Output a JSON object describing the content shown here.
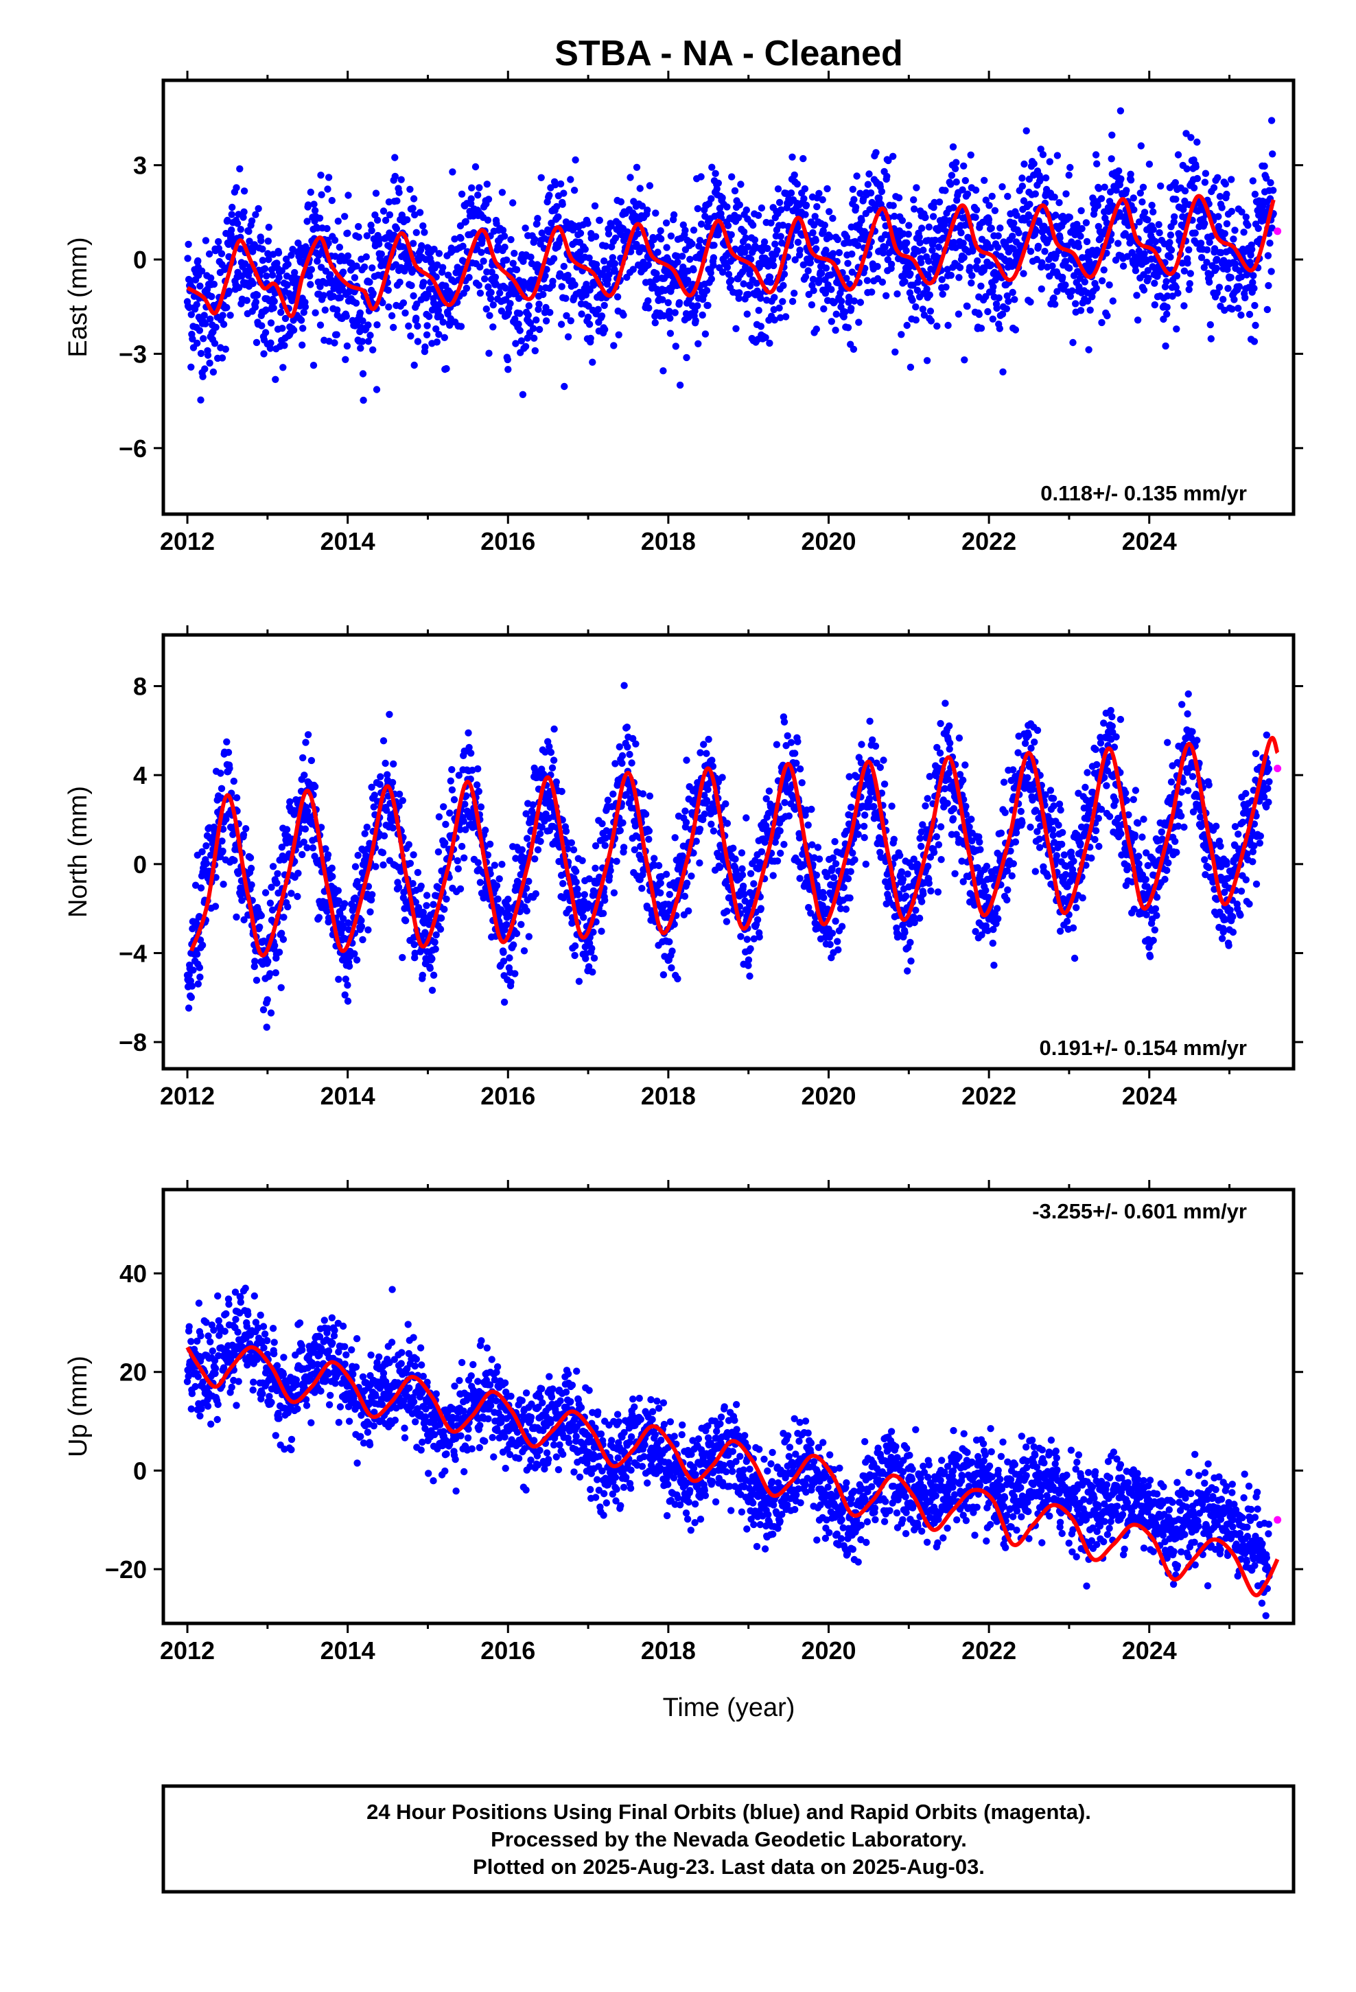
{
  "title": "STBA  - NA - Cleaned",
  "colors": {
    "final_orbits": "#0000ff",
    "rapid_orbits": "#ff00ff",
    "model_fit": "#ff0000",
    "frame": "#000000"
  },
  "chart_data": [
    {
      "type": "scatter",
      "ylabel": "East (mm)",
      "xlim": [
        2011.7,
        2025.8
      ],
      "ylim": [
        -8.1,
        5.7
      ],
      "xticks": [
        2012,
        2014,
        2016,
        2018,
        2020,
        2022,
        2024
      ],
      "yticks": [
        -6,
        -3,
        0,
        3
      ],
      "ytick_labels": [
        "−6",
        "−3",
        "0",
        "3"
      ],
      "rate_text": "0.118+/- 0.135 mm/yr",
      "rate_position": "bottom-right",
      "series": [
        {
          "kind": "points",
          "x": [
            2012.0,
            2012.2,
            2012.4,
            2012.6,
            2012.8,
            2013.0,
            2013.2,
            2013.4,
            2013.6,
            2013.8,
            2014.0,
            2014.2,
            2014.4,
            2014.6,
            2014.8,
            2015.0,
            2015.2,
            2015.4,
            2015.6,
            2015.8,
            2016.0,
            2016.2,
            2016.4,
            2016.6,
            2016.8,
            2017.0,
            2017.2,
            2017.4,
            2017.6,
            2017.8,
            2018.0,
            2018.2,
            2018.4,
            2018.6,
            2018.8,
            2019.0,
            2019.2,
            2019.4,
            2019.6,
            2019.8,
            2020.0,
            2020.2,
            2020.4,
            2020.6,
            2020.8,
            2021.0,
            2021.2,
            2021.4,
            2021.6,
            2021.8,
            2022.0,
            2022.2,
            2022.4,
            2022.6,
            2022.8,
            2023.0,
            2023.2,
            2023.4,
            2023.6,
            2023.8,
            2024.0,
            2024.2,
            2024.4,
            2024.6,
            2024.8,
            2025.0,
            2025.2,
            2025.4,
            2025.55
          ],
          "y": [
            -1.0,
            -1.7,
            -1.2,
            0.4,
            -0.6,
            -1.0,
            -1.6,
            -0.5,
            0.6,
            -0.6,
            -1.0,
            -1.3,
            -0.2,
            0.9,
            -0.5,
            -0.8,
            -1.3,
            -0.4,
            0.9,
            -0.3,
            -0.7,
            -1.2,
            -0.1,
            1.0,
            -0.2,
            -0.7,
            -1.1,
            0.0,
            1.1,
            -0.2,
            -0.5,
            -0.9,
            0.2,
            1.2,
            0.0,
            -0.4,
            -0.9,
            0.3,
            1.3,
            0.2,
            -0.3,
            -0.7,
            0.6,
            1.6,
            0.4,
            0.1,
            -0.5,
            0.6,
            1.5,
            0.3,
            0.0,
            -0.4,
            0.8,
            1.6,
            0.4,
            0.1,
            -0.4,
            0.7,
            1.8,
            0.5,
            0.2,
            -0.3,
            0.8,
            1.9,
            0.6,
            0.3,
            -0.3,
            0.6,
            1.4
          ],
          "spread": 1.1
        },
        {
          "kind": "model",
          "x": [
            2012.0,
            2012.2,
            2012.35,
            2012.5,
            2012.65,
            2012.8,
            2012.95,
            2013.1,
            2013.3,
            2013.45,
            2013.65,
            2013.8,
            2014.0,
            2014.2,
            2014.35,
            2014.65,
            2014.85,
            2015.05,
            2015.3,
            2015.65,
            2015.85,
            2016.05,
            2016.3,
            2016.6,
            2016.8,
            2017.05,
            2017.3,
            2017.6,
            2017.8,
            2018.05,
            2018.3,
            2018.6,
            2018.8,
            2019.05,
            2019.3,
            2019.6,
            2019.8,
            2020.05,
            2020.3,
            2020.65,
            2020.85,
            2021.05,
            2021.3,
            2021.65,
            2021.85,
            2022.05,
            2022.3,
            2022.65,
            2022.85,
            2023.05,
            2023.3,
            2023.65,
            2023.85,
            2024.05,
            2024.3,
            2024.6,
            2024.85,
            2025.05,
            2025.3,
            2025.55
          ],
          "y": [
            -0.9,
            -1.2,
            -1.7,
            -0.6,
            0.6,
            -0.1,
            -0.9,
            -0.8,
            -1.8,
            -0.4,
            0.7,
            -0.2,
            -0.8,
            -1.0,
            -1.5,
            0.8,
            -0.2,
            -0.6,
            -1.4,
            0.9,
            -0.1,
            -0.6,
            -1.2,
            1.0,
            0.0,
            -0.4,
            -1.1,
            1.1,
            0.1,
            -0.3,
            -1.1,
            1.2,
            0.2,
            -0.2,
            -1.0,
            1.3,
            0.2,
            -0.1,
            -0.9,
            1.6,
            0.3,
            0.0,
            -0.7,
            1.7,
            0.4,
            0.1,
            -0.6,
            1.7,
            0.5,
            0.2,
            -0.5,
            1.9,
            0.6,
            0.3,
            -0.4,
            2.0,
            0.7,
            0.4,
            -0.3,
            1.9
          ]
        },
        {
          "kind": "rapid",
          "x": [
            2025.6
          ],
          "y": [
            0.9
          ]
        }
      ]
    },
    {
      "type": "scatter",
      "ylabel": "North (mm)",
      "xlim": [
        2011.7,
        2025.8
      ],
      "ylim": [
        -9.2,
        10.3
      ],
      "xticks": [
        2012,
        2014,
        2016,
        2018,
        2020,
        2022,
        2024
      ],
      "yticks": [
        -8,
        -4,
        0,
        4,
        8
      ],
      "ytick_labels": [
        "−8",
        "−4",
        "0",
        "4",
        "8"
      ],
      "rate_text": "0.191+/- 0.154 mm/yr",
      "rate_position": "bottom-right",
      "series": [
        {
          "kind": "points",
          "x": [
            2012.0,
            2012.25,
            2012.5,
            2012.75,
            2013.0,
            2013.25,
            2013.5,
            2013.75,
            2014.0,
            2014.25,
            2014.5,
            2014.75,
            2015.0,
            2015.25,
            2015.5,
            2015.75,
            2016.0,
            2016.25,
            2016.5,
            2016.75,
            2017.0,
            2017.25,
            2017.5,
            2017.75,
            2018.0,
            2018.25,
            2018.5,
            2018.75,
            2019.0,
            2019.25,
            2019.5,
            2019.75,
            2020.0,
            2020.25,
            2020.5,
            2020.75,
            2021.0,
            2021.25,
            2021.5,
            2021.75,
            2022.0,
            2022.25,
            2022.5,
            2022.75,
            2023.0,
            2023.25,
            2023.5,
            2023.75,
            2024.0,
            2024.25,
            2024.5,
            2024.75,
            2025.0,
            2025.25,
            2025.5
          ],
          "y": [
            -5.5,
            -1.0,
            3.0,
            -1.5,
            -4.3,
            0.2,
            3.2,
            -1.2,
            -4.0,
            0.3,
            3.4,
            -1.0,
            -3.8,
            0.4,
            3.6,
            -0.8,
            -3.6,
            0.5,
            3.9,
            -0.6,
            -3.3,
            0.6,
            4.1,
            -0.4,
            -3.0,
            0.7,
            4.2,
            -0.2,
            -2.9,
            0.8,
            4.4,
            0.0,
            -2.7,
            0.9,
            4.5,
            0.2,
            -2.4,
            1.0,
            4.7,
            0.4,
            -2.3,
            1.2,
            5.0,
            1.0,
            -1.5,
            2.0,
            5.8,
            0.8,
            -2.0,
            1.5,
            5.2,
            0.5,
            -1.8,
            1.5,
            4.8
          ],
          "spread": 1.3
        },
        {
          "kind": "model",
          "x": [
            2012.05,
            2012.25,
            2012.5,
            2012.75,
            2012.95,
            2013.25,
            2013.5,
            2013.75,
            2013.95,
            2014.25,
            2014.5,
            2014.75,
            2014.95,
            2015.25,
            2015.5,
            2015.75,
            2015.95,
            2016.25,
            2016.5,
            2016.75,
            2016.95,
            2017.25,
            2017.5,
            2017.75,
            2017.95,
            2018.25,
            2018.5,
            2018.75,
            2018.95,
            2019.25,
            2019.5,
            2019.75,
            2019.95,
            2020.25,
            2020.5,
            2020.75,
            2020.95,
            2021.25,
            2021.5,
            2021.75,
            2021.95,
            2022.25,
            2022.5,
            2022.75,
            2022.95,
            2023.25,
            2023.5,
            2023.75,
            2023.95,
            2024.25,
            2024.5,
            2024.75,
            2024.95,
            2025.25,
            2025.5,
            2025.6
          ],
          "y": [
            -3.9,
            -1.8,
            3.1,
            -1.3,
            -4.1,
            -0.6,
            3.3,
            -1.1,
            -3.9,
            -0.4,
            3.5,
            -0.9,
            -3.7,
            -0.2,
            3.7,
            -0.7,
            -3.5,
            0.0,
            3.9,
            -0.5,
            -3.3,
            0.2,
            4.1,
            -0.3,
            -3.1,
            0.4,
            4.3,
            -0.1,
            -2.9,
            0.6,
            4.5,
            0.1,
            -2.7,
            0.8,
            4.6,
            0.3,
            -2.5,
            1.0,
            4.8,
            0.5,
            -2.3,
            1.1,
            5.0,
            0.7,
            -2.2,
            1.3,
            5.2,
            0.9,
            -2.0,
            1.5,
            5.4,
            1.1,
            -1.8,
            1.7,
            5.5,
            5.0
          ]
        },
        {
          "kind": "rapid",
          "x": [
            2025.6
          ],
          "y": [
            4.3
          ]
        }
      ]
    },
    {
      "type": "scatter",
      "ylabel": "Up (mm)",
      "xlabel": "Time (year)",
      "xlim": [
        2011.7,
        2025.8
      ],
      "ylim": [
        -31,
        57
      ],
      "xticks": [
        2012,
        2014,
        2016,
        2018,
        2020,
        2022,
        2024
      ],
      "yticks": [
        -20,
        0,
        20,
        40
      ],
      "ytick_labels": [
        "−20",
        "0",
        "20",
        "40"
      ],
      "rate_text": "-3.255+/- 0.601 mm/yr",
      "rate_position": "top-right",
      "series": [
        {
          "kind": "points",
          "x": [
            2012.0,
            2012.25,
            2012.5,
            2012.75,
            2013.0,
            2013.25,
            2013.5,
            2013.75,
            2014.0,
            2014.25,
            2014.5,
            2014.75,
            2015.0,
            2015.25,
            2015.5,
            2015.75,
            2016.0,
            2016.25,
            2016.5,
            2016.75,
            2017.0,
            2017.25,
            2017.5,
            2017.75,
            2018.0,
            2018.25,
            2018.5,
            2018.75,
            2019.0,
            2019.25,
            2019.5,
            2019.75,
            2020.0,
            2020.25,
            2020.5,
            2020.75,
            2021.0,
            2021.25,
            2021.5,
            2021.75,
            2022.0,
            2022.25,
            2022.5,
            2022.75,
            2023.0,
            2023.25,
            2023.5,
            2023.75,
            2024.0,
            2024.25,
            2024.5,
            2024.75,
            2025.0,
            2025.25,
            2025.5
          ],
          "y": [
            24,
            18,
            24,
            28,
            20,
            14,
            20,
            23,
            18,
            12,
            17,
            19,
            12,
            6,
            12,
            15,
            10,
            5,
            10,
            12,
            5,
            -1,
            5,
            8,
            2,
            -3,
            3,
            5,
            -2,
            -7,
            -1,
            2,
            -5,
            -12,
            -3,
            0,
            -4,
            -8,
            -3,
            -2,
            -4,
            -8,
            -3,
            -3,
            -5,
            -9,
            -6,
            -5,
            -8,
            -12,
            -10,
            -8,
            -10,
            -14,
            -18
          ],
          "spread": 4.5
        },
        {
          "kind": "model",
          "x": [
            2012.0,
            2012.15,
            2012.35,
            2012.55,
            2012.8,
            2013.05,
            2013.3,
            2013.55,
            2013.8,
            2014.05,
            2014.3,
            2014.55,
            2014.8,
            2015.05,
            2015.3,
            2015.55,
            2015.8,
            2016.05,
            2016.3,
            2016.55,
            2016.8,
            2017.05,
            2017.3,
            2017.55,
            2017.8,
            2018.05,
            2018.3,
            2018.55,
            2018.8,
            2019.05,
            2019.3,
            2019.55,
            2019.8,
            2020.05,
            2020.3,
            2020.55,
            2020.8,
            2021.05,
            2021.3,
            2021.55,
            2021.8,
            2022.05,
            2022.3,
            2022.55,
            2022.8,
            2023.05,
            2023.3,
            2023.55,
            2023.8,
            2024.05,
            2024.3,
            2024.55,
            2024.8,
            2025.05,
            2025.3,
            2025.45,
            2025.6
          ],
          "y": [
            25,
            21,
            17,
            21,
            25,
            21,
            14,
            17,
            22,
            18,
            11,
            14,
            19,
            15,
            8,
            11,
            16,
            12,
            5,
            8,
            12,
            8,
            1,
            4,
            9,
            5,
            -2,
            1,
            6,
            2,
            -5,
            -2,
            3,
            -1,
            -9,
            -6,
            -1,
            -5,
            -12,
            -8,
            -4,
            -6,
            -15,
            -11,
            -7,
            -10,
            -18,
            -15,
            -11,
            -14,
            -22,
            -18,
            -14,
            -17,
            -25,
            -23,
            -18
          ]
        },
        {
          "kind": "rapid",
          "x": [
            2025.6
          ],
          "y": [
            -10
          ]
        }
      ]
    }
  ],
  "footer": {
    "line1": "24 Hour Positions Using Final Orbits (blue) and Rapid Orbits (magenta).",
    "line2": "Processed by the Nevada Geodetic Laboratory.",
    "line3": "Plotted on 2025-Aug-23. Last data on 2025-Aug-03."
  }
}
